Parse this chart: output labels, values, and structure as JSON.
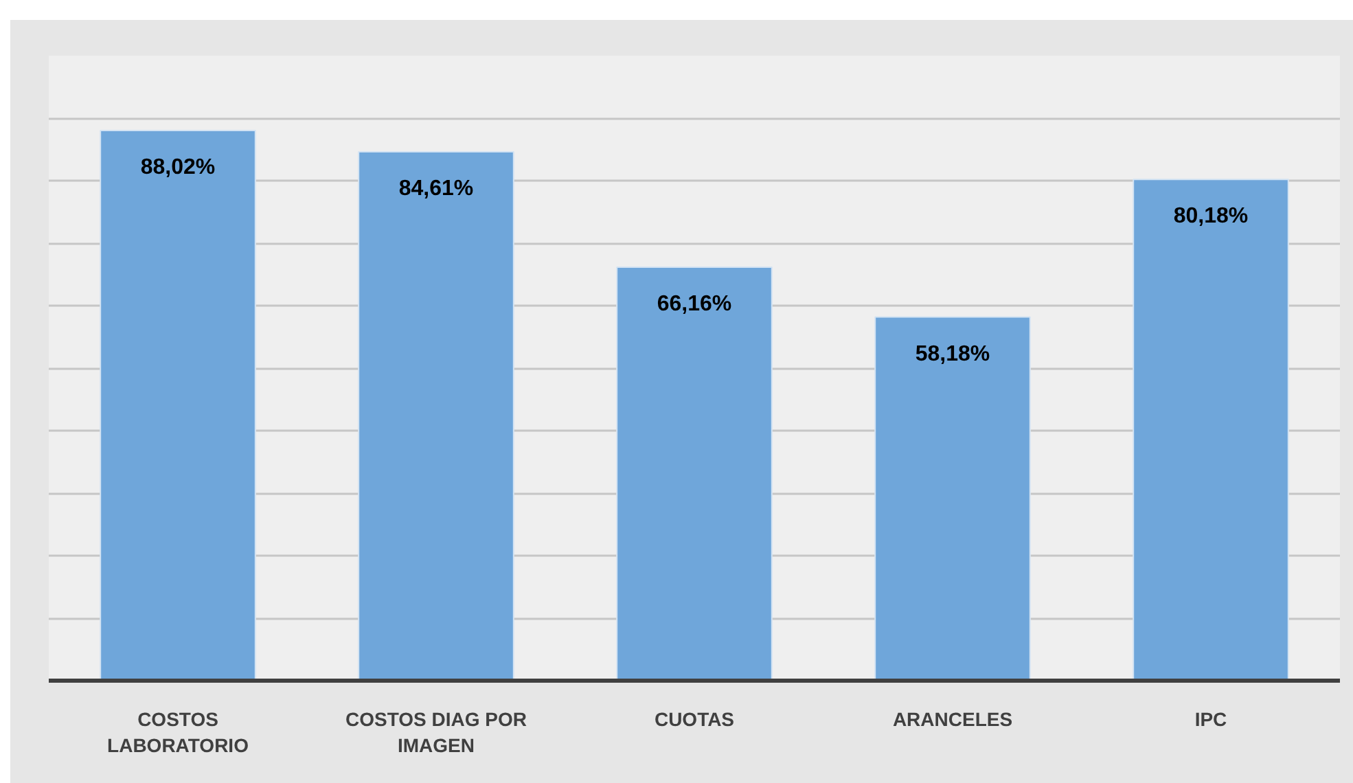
{
  "chart_data": {
    "type": "bar",
    "categories": [
      "COSTOS LABORATORIO",
      "COSTOS DIAG POR IMAGEN",
      "CUOTAS",
      "ARANCELES",
      "IPC"
    ],
    "values": [
      88.02,
      84.61,
      66.16,
      58.18,
      80.18
    ],
    "value_labels": [
      "88,02%",
      "84,61%",
      "66,16%",
      "58,18%",
      "80,18%"
    ],
    "color": "#6fa6da",
    "ylim": [
      0,
      100
    ],
    "yticks": [
      {
        "value": 0,
        "label": null
      },
      {
        "value": 10,
        "label": null
      },
      {
        "value": 20,
        "label": null
      },
      {
        "value": 30,
        "label": null
      },
      {
        "value": 40,
        "label": null
      },
      {
        "value": 50,
        "label": null
      },
      {
        "value": 60,
        "label": null
      },
      {
        "value": 70,
        "label": null
      },
      {
        "value": 80,
        "label": null
      },
      {
        "value": 90,
        "label": null
      },
      {
        "value": 100,
        "label": null
      }
    ],
    "grid": "y",
    "tick_labels": "x"
  }
}
